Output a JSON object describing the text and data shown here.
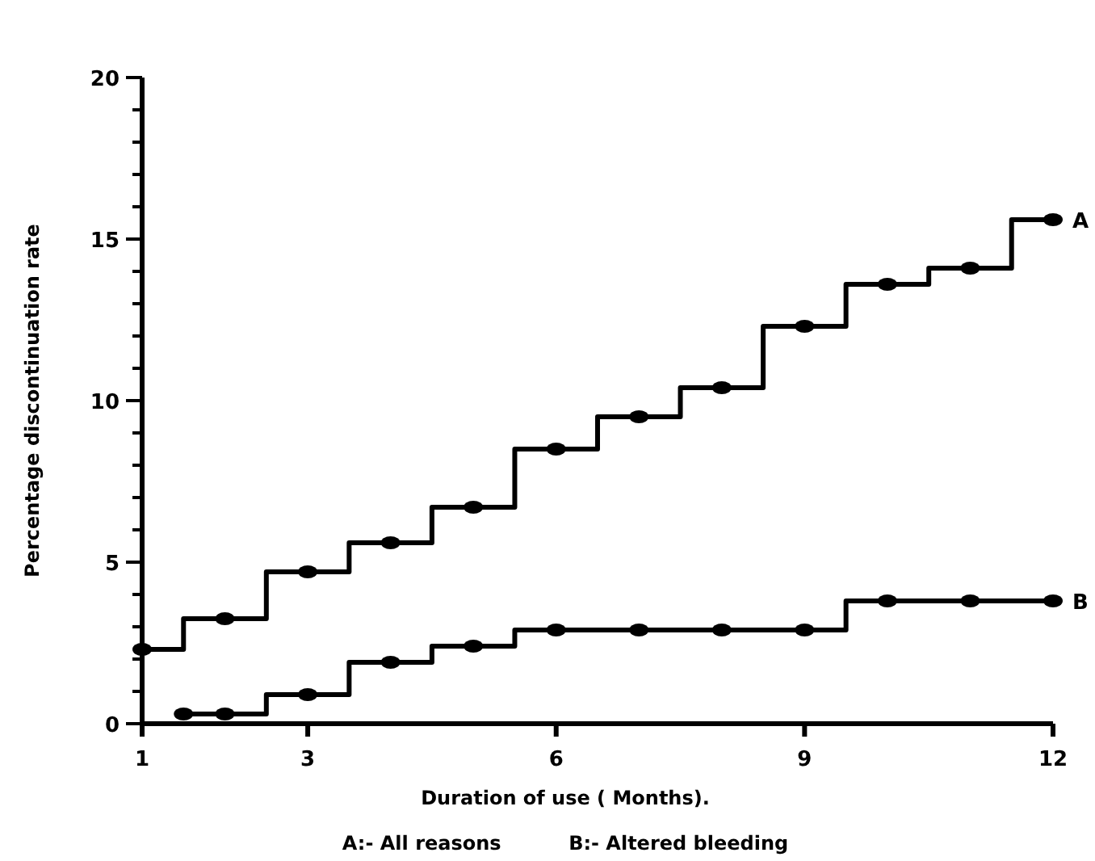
{
  "chart_data": {
    "type": "step",
    "xlabel": "Duration of use ( Months).",
    "ylabel": "Percentage discontinuation rate",
    "annotations": [
      "A:- All reasons          B:- Altered bleeding"
    ],
    "xlim": [
      1,
      12
    ],
    "xticks": [
      1,
      3,
      6,
      9,
      12
    ],
    "ylim": [
      0,
      20
    ],
    "yticks": [
      0,
      {
        "value": 1,
        "label": null
      },
      {
        "value": 2,
        "label": null
      },
      {
        "value": 3,
        "label": null
      },
      {
        "value": 4,
        "label": null
      },
      5,
      {
        "value": 6,
        "label": null
      },
      {
        "value": 7,
        "label": null
      },
      {
        "value": 8,
        "label": null
      },
      {
        "value": 9,
        "label": null
      },
      10,
      {
        "value": 11,
        "label": null
      },
      {
        "value": 12,
        "label": null
      },
      {
        "value": 13,
        "label": null
      },
      {
        "value": 14,
        "label": null
      },
      15,
      {
        "value": 16,
        "label": null
      },
      {
        "value": 17,
        "label": null
      },
      {
        "value": 18,
        "label": null
      },
      {
        "value": 19,
        "label": null
      },
      20
    ],
    "grid": false,
    "marker": "circle",
    "line_style": "solid",
    "series": [
      {
        "name": "A",
        "color": "#000000",
        "x": [
          1,
          2,
          3,
          4,
          5,
          6,
          7,
          8,
          9,
          10,
          11,
          12
        ],
        "values": [
          2.3,
          3.25,
          4.7,
          5.6,
          6.7,
          8.5,
          9.5,
          10.4,
          12.3,
          13.6,
          14.1,
          15.6
        ]
      },
      {
        "name": "B",
        "color": "#000000",
        "x": [
          1.5,
          2,
          3,
          4,
          5,
          6,
          7,
          8,
          9,
          10,
          11,
          12
        ],
        "values": [
          0.3,
          0.3,
          0.9,
          1.9,
          2.4,
          2.9,
          2.9,
          2.9,
          2.9,
          3.8,
          3.8,
          3.8
        ]
      }
    ]
  }
}
